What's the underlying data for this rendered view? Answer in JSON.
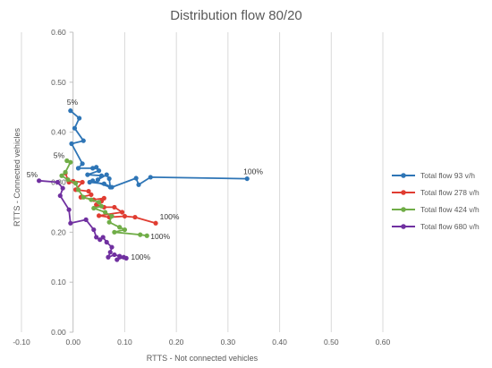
{
  "chart_data": {
    "type": "scatter",
    "title": "Distribution flow 80/20",
    "xlabel": "RTTS - Not connected vehicles",
    "ylabel": "RTTS - Connected vehicles",
    "xlim": [
      -0.1,
      0.6
    ],
    "ylim": [
      0.0,
      0.6
    ],
    "x_ticks": [
      "-0.10",
      "0.00",
      "0.10",
      "0.20",
      "0.30",
      "0.40",
      "0.50",
      "0.60"
    ],
    "y_ticks": [
      "0.00",
      "0.10",
      "0.20",
      "0.30",
      "0.40",
      "0.50",
      "0.60"
    ],
    "grid": "vertical",
    "legend_position": "right",
    "series": [
      {
        "name": "Total flow 93 v/h",
        "color": "#2E75B6",
        "points": [
          [
            -0.005,
            0.443
          ],
          [
            0.012,
            0.428
          ],
          [
            0.003,
            0.408
          ],
          [
            0.02,
            0.383
          ],
          [
            -0.003,
            0.377
          ],
          [
            0.018,
            0.337
          ],
          [
            0.01,
            0.328
          ],
          [
            0.038,
            0.328
          ],
          [
            0.045,
            0.33
          ],
          [
            0.05,
            0.323
          ],
          [
            0.028,
            0.315
          ],
          [
            0.055,
            0.313
          ],
          [
            0.048,
            0.305
          ],
          [
            0.065,
            0.315
          ],
          [
            0.07,
            0.307
          ],
          [
            0.072,
            0.29
          ],
          [
            0.038,
            0.303
          ],
          [
            0.032,
            0.3
          ],
          [
            0.06,
            0.297
          ],
          [
            0.075,
            0.29
          ],
          [
            0.122,
            0.308
          ],
          [
            0.127,
            0.295
          ],
          [
            0.15,
            0.31
          ],
          [
            0.337,
            0.307
          ]
        ]
      },
      {
        "name": "Total flow 278 v/h",
        "color": "#E03C31",
        "points": [
          [
            -0.015,
            0.318
          ],
          [
            -0.01,
            0.305
          ],
          [
            -0.008,
            0.3
          ],
          [
            0.0,
            0.302
          ],
          [
            0.018,
            0.3
          ],
          [
            0.005,
            0.285
          ],
          [
            0.03,
            0.282
          ],
          [
            0.035,
            0.275
          ],
          [
            0.015,
            0.27
          ],
          [
            0.04,
            0.265
          ],
          [
            0.06,
            0.268
          ],
          [
            0.055,
            0.262
          ],
          [
            0.045,
            0.255
          ],
          [
            0.06,
            0.25
          ],
          [
            0.08,
            0.25
          ],
          [
            0.095,
            0.24
          ],
          [
            0.05,
            0.233
          ],
          [
            0.07,
            0.23
          ],
          [
            0.1,
            0.232
          ],
          [
            0.12,
            0.23
          ],
          [
            0.16,
            0.218
          ]
        ]
      },
      {
        "name": "Total flow 424 v/h",
        "color": "#70AD47",
        "points": [
          [
            -0.012,
            0.343
          ],
          [
            -0.005,
            0.34
          ],
          [
            -0.015,
            0.32
          ],
          [
            -0.022,
            0.313
          ],
          [
            -0.01,
            0.305
          ],
          [
            0.005,
            0.298
          ],
          [
            0.01,
            0.285
          ],
          [
            0.02,
            0.27
          ],
          [
            0.035,
            0.265
          ],
          [
            0.05,
            0.26
          ],
          [
            0.055,
            0.252
          ],
          [
            0.04,
            0.248
          ],
          [
            0.062,
            0.24
          ],
          [
            0.075,
            0.232
          ],
          [
            0.07,
            0.22
          ],
          [
            0.09,
            0.21
          ],
          [
            0.1,
            0.205
          ],
          [
            0.08,
            0.2
          ],
          [
            0.13,
            0.195
          ],
          [
            0.143,
            0.193
          ]
        ]
      },
      {
        "name": "Total flow 680 v/h",
        "color": "#7030A0",
        "points": [
          [
            -0.066,
            0.303
          ],
          [
            -0.03,
            0.3
          ],
          [
            -0.02,
            0.288
          ],
          [
            -0.025,
            0.273
          ],
          [
            -0.008,
            0.245
          ],
          [
            -0.005,
            0.218
          ],
          [
            0.025,
            0.225
          ],
          [
            0.04,
            0.205
          ],
          [
            0.045,
            0.19
          ],
          [
            0.052,
            0.185
          ],
          [
            0.058,
            0.19
          ],
          [
            0.065,
            0.18
          ],
          [
            0.075,
            0.17
          ],
          [
            0.072,
            0.16
          ],
          [
            0.068,
            0.15
          ],
          [
            0.08,
            0.155
          ],
          [
            0.09,
            0.152
          ],
          [
            0.085,
            0.145
          ],
          [
            0.098,
            0.15
          ],
          [
            0.103,
            0.148
          ]
        ]
      }
    ],
    "annotations": [
      {
        "text": "5%",
        "x": -0.012,
        "y": 0.455
      },
      {
        "text": "5%",
        "x": -0.038,
        "y": 0.348
      },
      {
        "text": "5%",
        "x": -0.09,
        "y": 0.31
      },
      {
        "text": "100%",
        "x": 0.33,
        "y": 0.316
      },
      {
        "text": "100%",
        "x": 0.168,
        "y": 0.226
      },
      {
        "text": "100%",
        "x": 0.15,
        "y": 0.186
      },
      {
        "text": "100%",
        "x": 0.112,
        "y": 0.145
      }
    ]
  }
}
